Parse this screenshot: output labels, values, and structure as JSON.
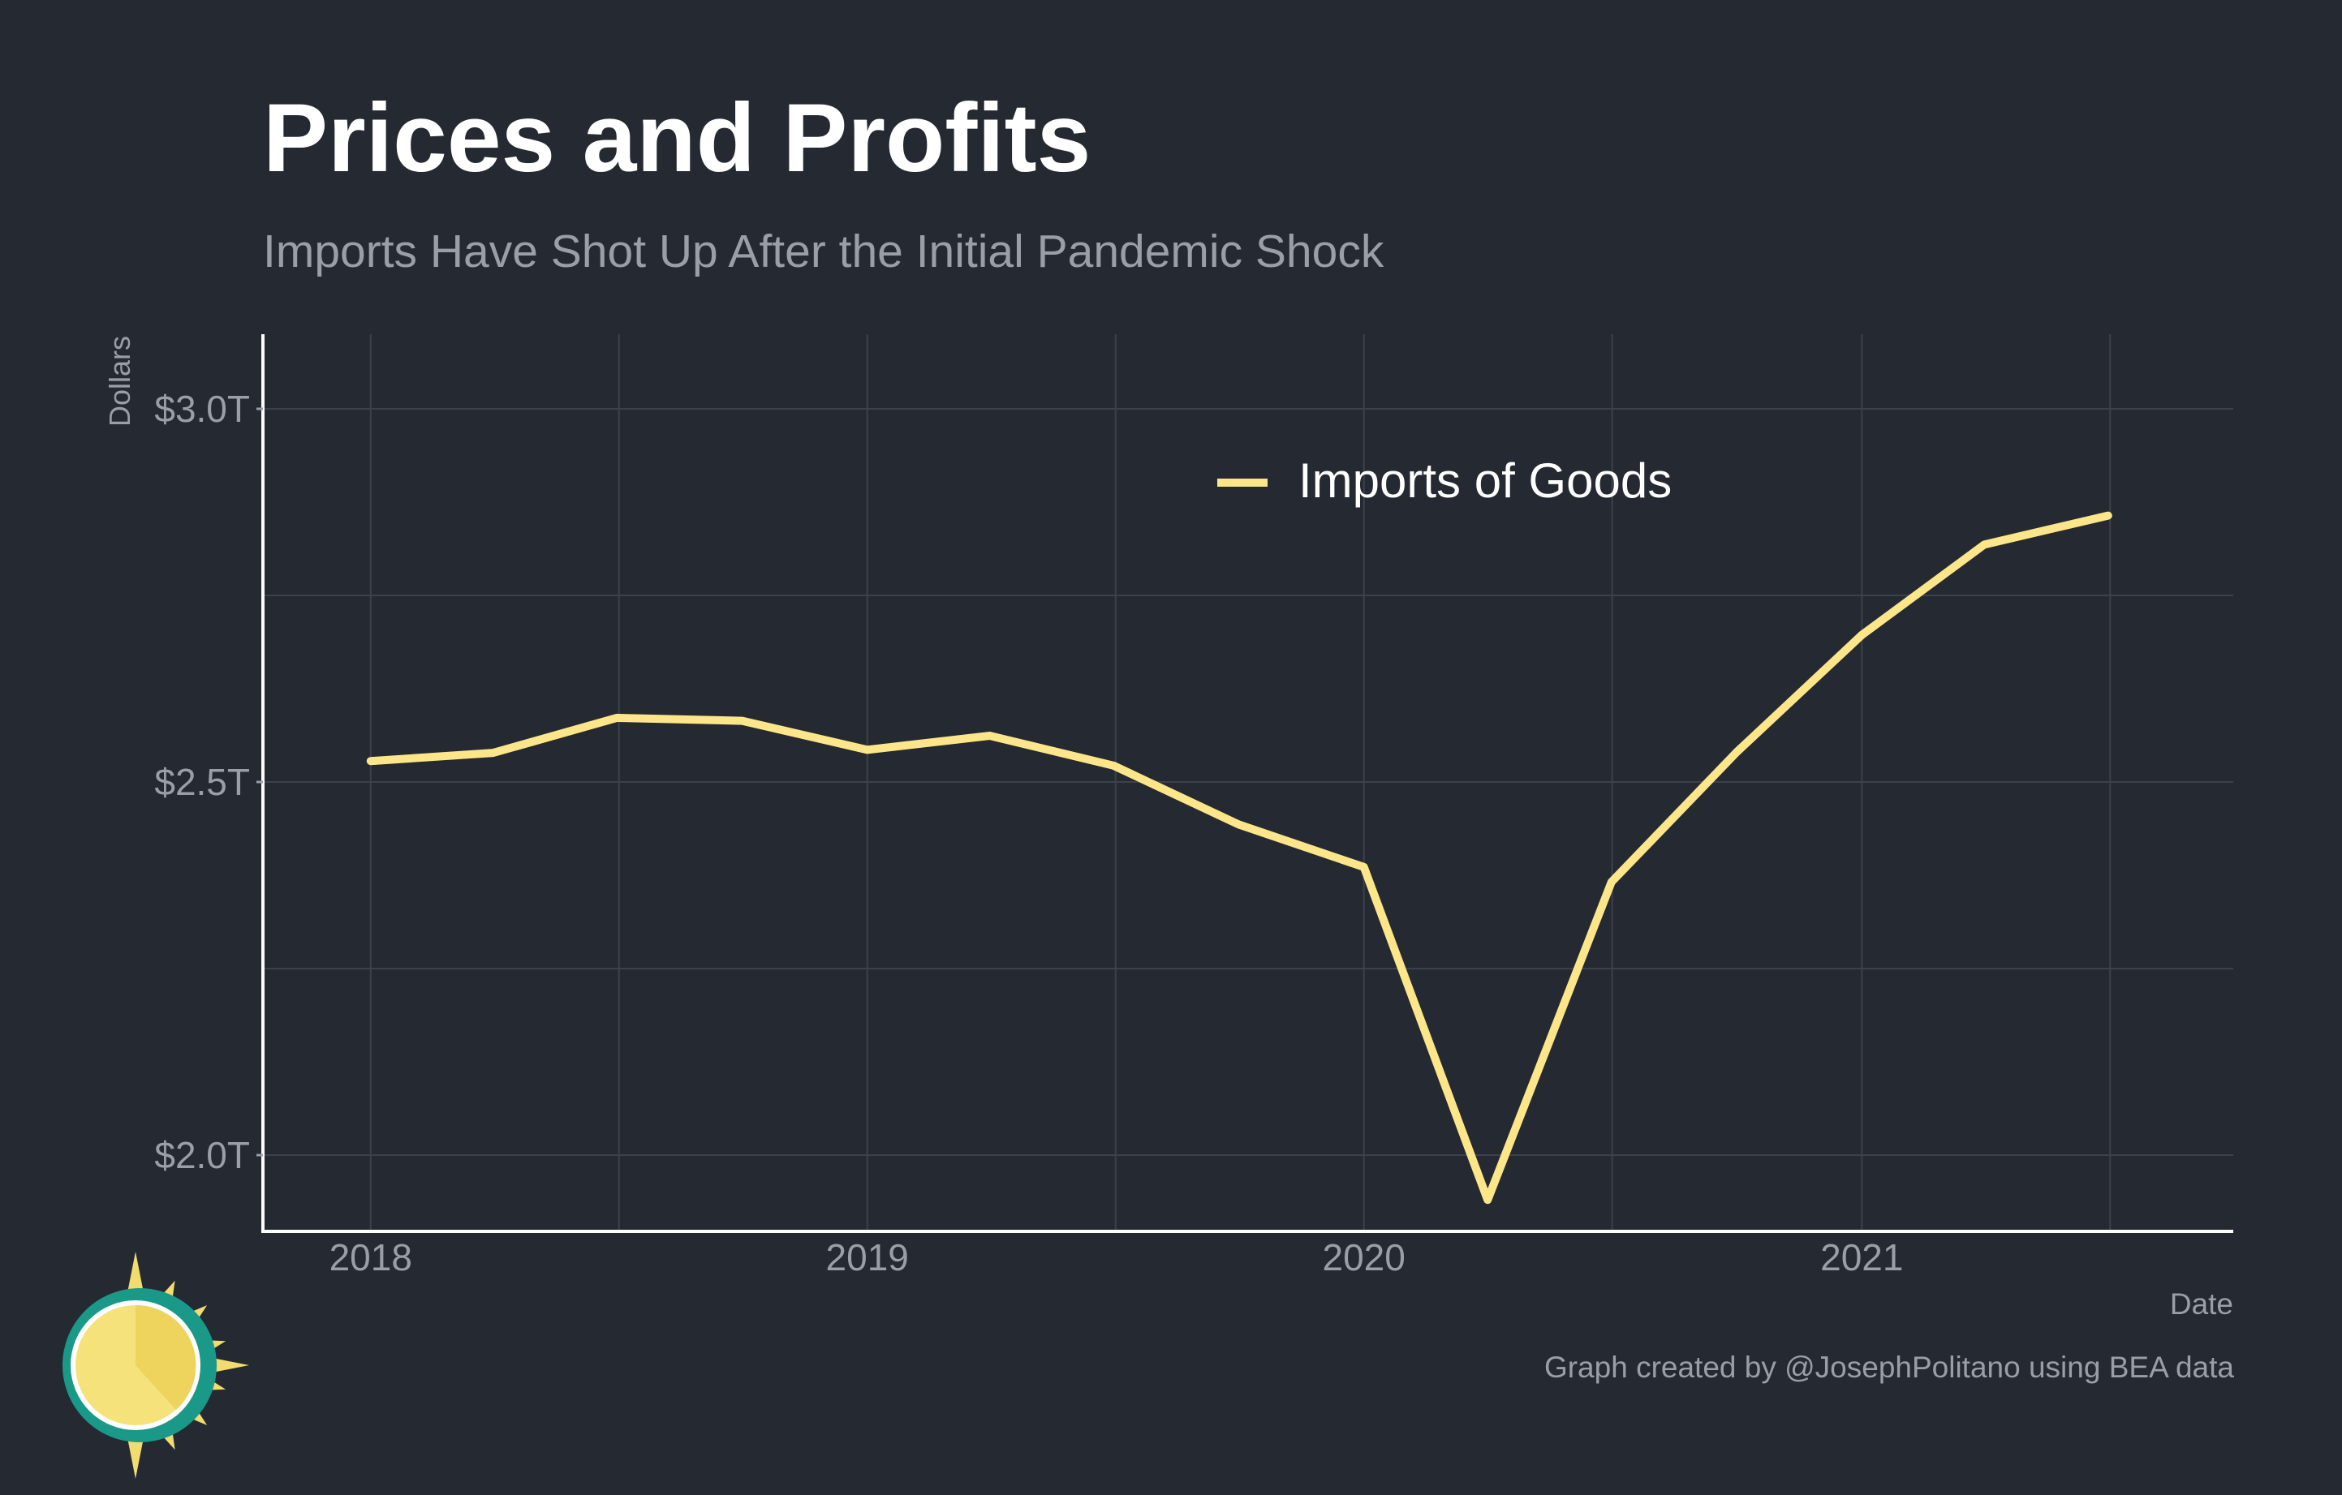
{
  "header": {
    "title": "Prices and Profits",
    "subtitle": "Imports Have Shot Up After the Initial Pandemic Shock"
  },
  "caption": "Graph created by @JosephPolitano using BEA data",
  "colors": {
    "background": "#252932",
    "line": "#fde68a",
    "grid": "#3c414b",
    "axis": "#ffffff",
    "muted_text": "#9a9ea6"
  },
  "logo": {
    "icon": "sun-logo-icon"
  },
  "chart_data": {
    "type": "line",
    "title": "Prices and Profits",
    "subtitle": "Imports Have Shot Up After the Initial Pandemic Shock",
    "xlabel": "Date",
    "ylabel": "Dollars",
    "x": [
      "2018-01-01",
      "2018-04-01",
      "2018-07-01",
      "2018-10-01",
      "2019-01-01",
      "2019-04-01",
      "2019-07-01",
      "2019-10-01",
      "2020-01-01",
      "2020-04-01",
      "2020-07-01",
      "2020-10-01",
      "2021-01-01",
      "2021-04-01",
      "2021-07-01"
    ],
    "series": [
      {
        "name": "Imports of Goods",
        "values": [
          2.528,
          2.539,
          2.586,
          2.582,
          2.543,
          2.562,
          2.522,
          2.443,
          2.386,
          1.94,
          2.366,
          2.54,
          2.697,
          2.818,
          2.857
        ]
      }
    ],
    "xticks": [
      "2018-01-01",
      "2019-01-01",
      "2020-01-01",
      "2021-01-01"
    ],
    "xtick_labels": [
      "2018",
      "2019",
      "2020",
      "2021"
    ],
    "xlim": [
      "2017-10-15",
      "2021-10-01"
    ],
    "yticks": [
      2.0,
      2.5,
      3.0
    ],
    "ytick_labels": [
      "$2.0T",
      "$2.5T",
      "$3.0T"
    ],
    "ylim": [
      1.9,
      3.1
    ],
    "unit": "Trillions of dollars",
    "grid": true,
    "legend": "top-center"
  }
}
